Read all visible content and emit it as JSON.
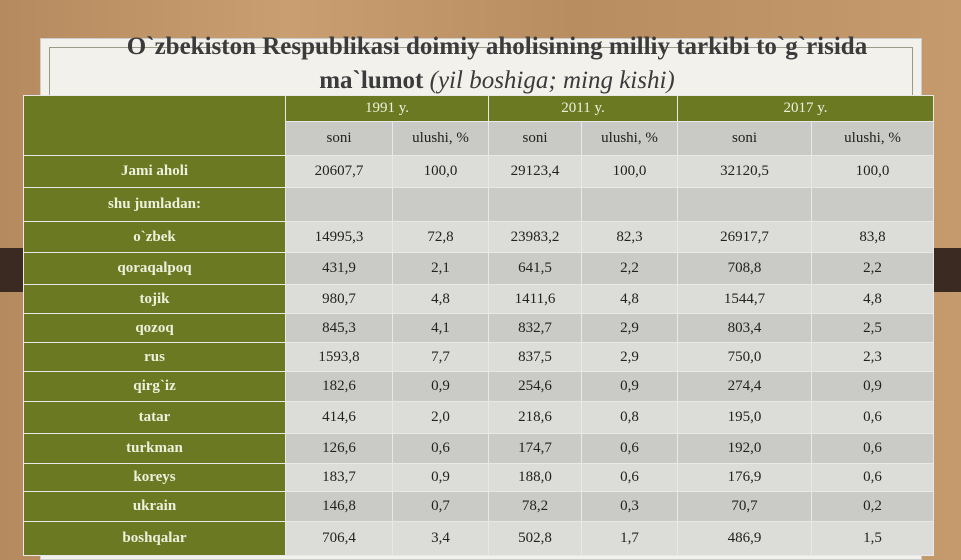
{
  "header": {
    "title": "O`zbekiston Respublikasi doimiy aholisining milliy tarkibi to`g`risida ma`lumot",
    "subtitle": "(yil boshiga; ming kishi)"
  },
  "table": {
    "years": [
      "1991 y.",
      "2011 y.",
      "2017 y."
    ],
    "subheaders": [
      "soni",
      "ulushi, %",
      "soni",
      "ulushi, %",
      "soni",
      "ulushi, %"
    ],
    "rows": [
      {
        "label": "Jami aholi",
        "cells": [
          "20607,7",
          "100,0",
          "29123,4",
          "100,0",
          "32120,5",
          "100,0"
        ]
      },
      {
        "label": "shu jumladan:"
      },
      {
        "label": "o`zbek",
        "cells": [
          "14995,3",
          "72,8",
          "23983,2",
          "82,3",
          "26917,7",
          "83,8"
        ]
      },
      {
        "label": "qoraqalpoq",
        "cells": [
          "431,9",
          "2,1",
          "641,5",
          "2,2",
          "708,8",
          "2,2"
        ]
      },
      {
        "label": "tojik",
        "cells": [
          "980,7",
          "4,8",
          "1411,6",
          "4,8",
          "1544,7",
          "4,8"
        ]
      },
      {
        "label": "qozoq",
        "cells": [
          "845,3",
          "4,1",
          "832,7",
          "2,9",
          "803,4",
          "2,5"
        ]
      },
      {
        "label": "rus",
        "cells": [
          "1593,8",
          "7,7",
          "837,5",
          "2,9",
          "750,0",
          "2,3"
        ]
      },
      {
        "label": "qirg`iz",
        "cells": [
          "182,6",
          "0,9",
          "254,6",
          "0,9",
          "274,4",
          "0,9"
        ]
      },
      {
        "label": "tatar",
        "cells": [
          "414,6",
          "2,0",
          "218,6",
          "0,8",
          "195,0",
          "0,6"
        ]
      },
      {
        "label": "turkman",
        "cells": [
          "126,6",
          "0,6",
          "174,7",
          "0,6",
          "192,0",
          "0,6"
        ]
      },
      {
        "label": "koreys",
        "cells": [
          "183,7",
          "0,9",
          "188,0",
          "0,6",
          "176,9",
          "0,6"
        ]
      },
      {
        "label": "ukrain",
        "cells": [
          "146,8",
          "0,7",
          "78,2",
          "0,3",
          "70,7",
          "0,2"
        ]
      },
      {
        "label": "boshqalar",
        "cells": [
          "706,4",
          "3,4",
          "502,8",
          "1,7",
          "486,9",
          "1,5"
        ]
      }
    ]
  }
}
